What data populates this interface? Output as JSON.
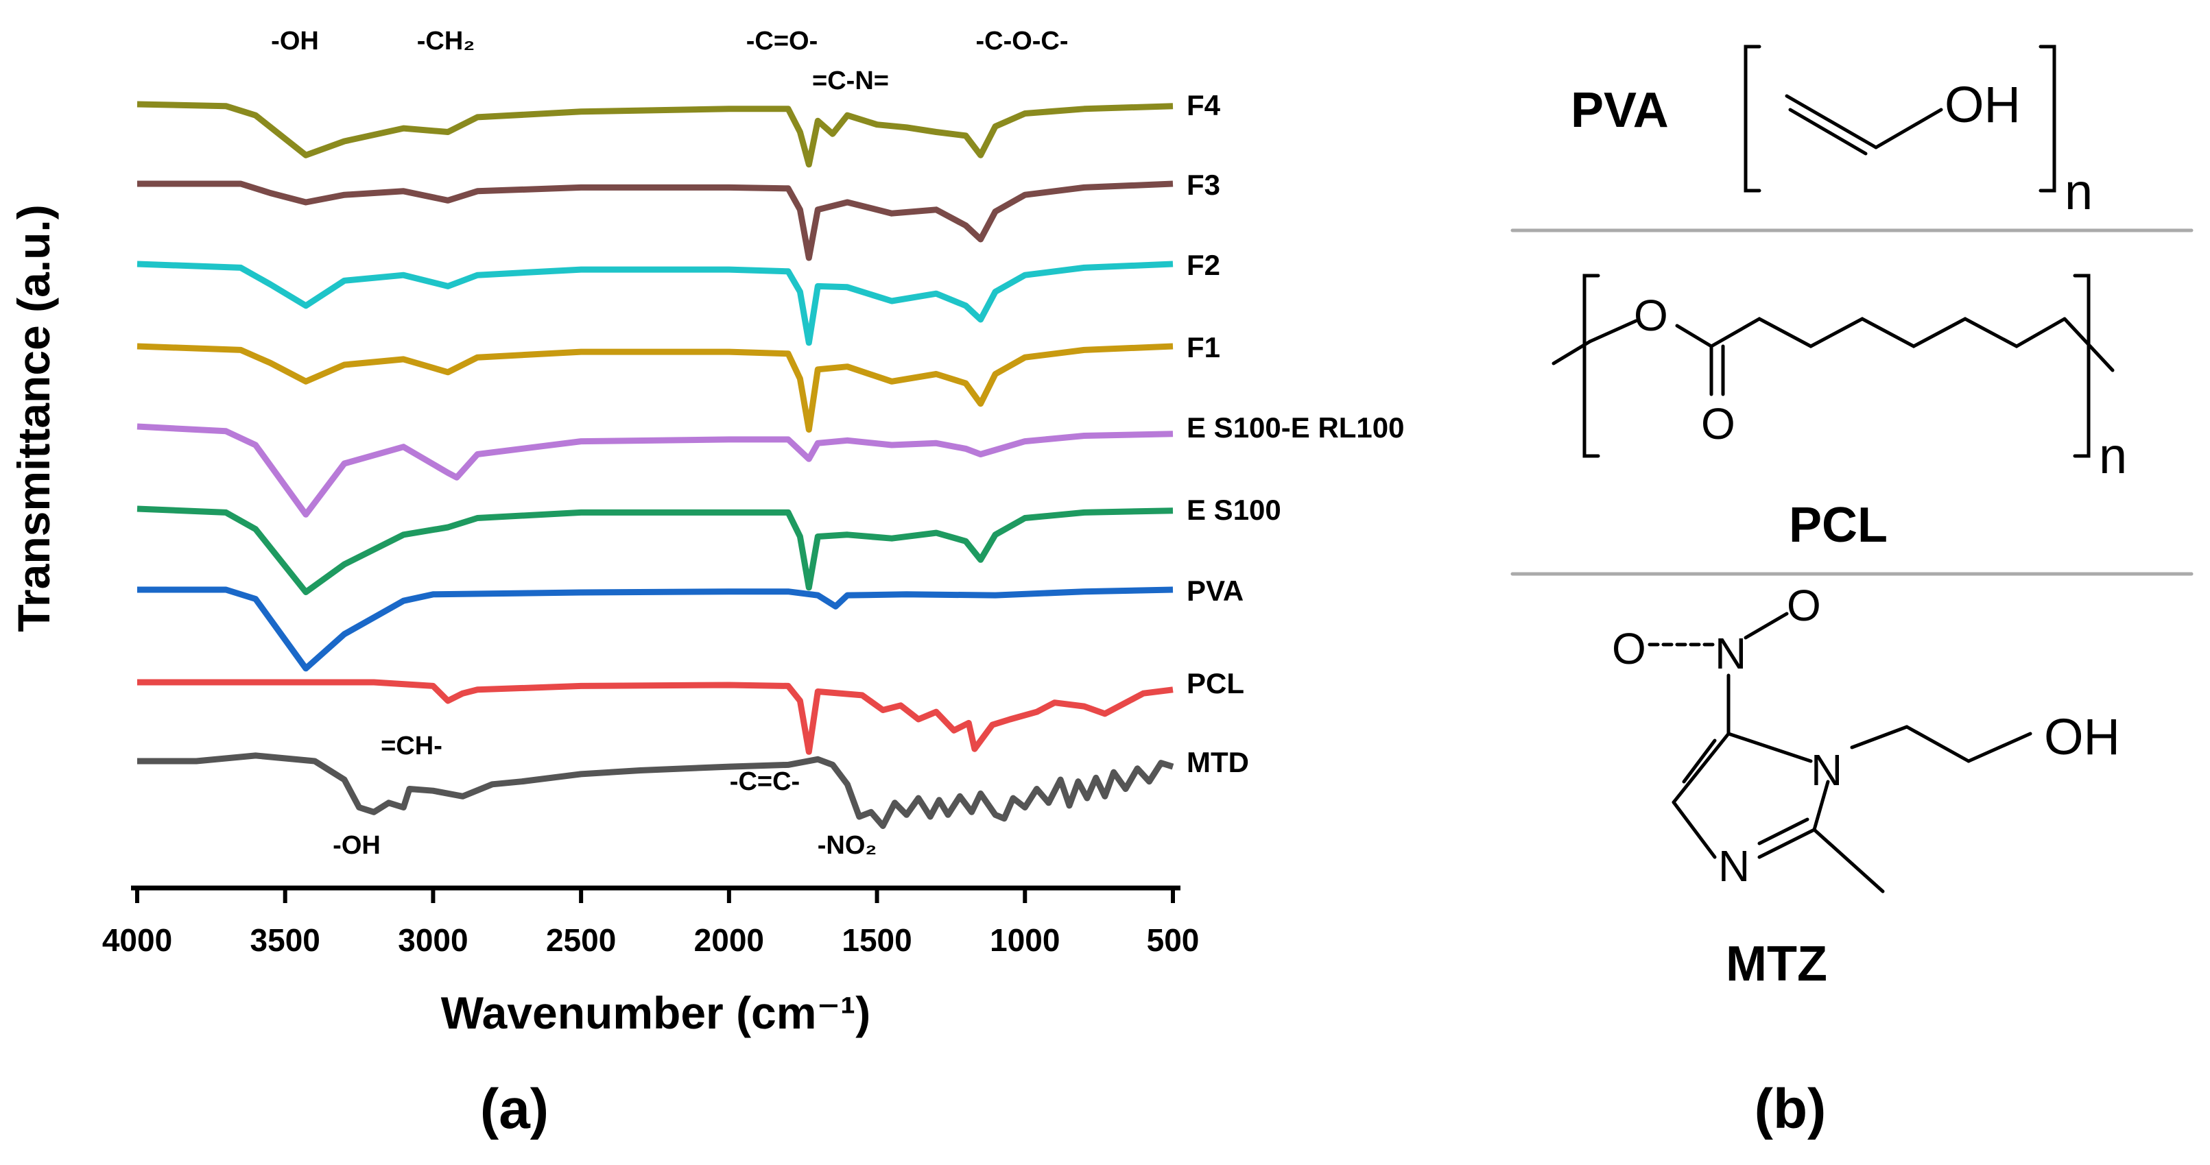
{
  "panel_a_caption": "(a)",
  "panel_b_caption": "(b)",
  "chart_data": {
    "type": "line",
    "title": "",
    "xlabel": "Wavenumber (cm⁻¹)",
    "ylabel": "Transmittance (a.u.)",
    "xlim": [
      4000,
      500
    ],
    "x_ticks": [
      4000,
      3500,
      3000,
      2500,
      2000,
      1500,
      1000,
      500
    ],
    "x_reversed": true,
    "grid": false,
    "legend": "labels at right end of each trace (stacked, offset)",
    "series": [
      {
        "name": "F4",
        "color": "#8a8a1e",
        "points": [
          [
            4000,
            0
          ],
          [
            3700,
            -2
          ],
          [
            3600,
            -12
          ],
          [
            3430,
            -55
          ],
          [
            3300,
            -40
          ],
          [
            3100,
            -26
          ],
          [
            2950,
            -30
          ],
          [
            2850,
            -14
          ],
          [
            2500,
            -8
          ],
          [
            2000,
            -5
          ],
          [
            1800,
            -5
          ],
          [
            1760,
            -30
          ],
          [
            1730,
            -65
          ],
          [
            1700,
            -18
          ],
          [
            1650,
            -32
          ],
          [
            1600,
            -12
          ],
          [
            1500,
            -22
          ],
          [
            1400,
            -25
          ],
          [
            1300,
            -30
          ],
          [
            1200,
            -34
          ],
          [
            1150,
            -55
          ],
          [
            1100,
            -24
          ],
          [
            1000,
            -10
          ],
          [
            800,
            -5
          ],
          [
            500,
            -2
          ]
        ]
      },
      {
        "name": "F3",
        "color": "#7a4a48",
        "points": [
          [
            4000,
            0
          ],
          [
            3650,
            0
          ],
          [
            3550,
            -10
          ],
          [
            3430,
            -20
          ],
          [
            3300,
            -12
          ],
          [
            3100,
            -8
          ],
          [
            2950,
            -18
          ],
          [
            2850,
            -8
          ],
          [
            2500,
            -4
          ],
          [
            2000,
            -4
          ],
          [
            1800,
            -5
          ],
          [
            1760,
            -28
          ],
          [
            1730,
            -80
          ],
          [
            1700,
            -28
          ],
          [
            1600,
            -20
          ],
          [
            1450,
            -32
          ],
          [
            1300,
            -28
          ],
          [
            1200,
            -45
          ],
          [
            1150,
            -60
          ],
          [
            1100,
            -30
          ],
          [
            1000,
            -12
          ],
          [
            800,
            -4
          ],
          [
            500,
            0
          ]
        ]
      },
      {
        "name": "F2",
        "color": "#1ec4c8",
        "points": [
          [
            4000,
            0
          ],
          [
            3650,
            -4
          ],
          [
            3550,
            -22
          ],
          [
            3430,
            -45
          ],
          [
            3300,
            -18
          ],
          [
            3100,
            -12
          ],
          [
            2950,
            -24
          ],
          [
            2850,
            -12
          ],
          [
            2500,
            -6
          ],
          [
            2000,
            -6
          ],
          [
            1800,
            -8
          ],
          [
            1760,
            -30
          ],
          [
            1730,
            -85
          ],
          [
            1700,
            -24
          ],
          [
            1600,
            -25
          ],
          [
            1450,
            -40
          ],
          [
            1300,
            -32
          ],
          [
            1200,
            -45
          ],
          [
            1150,
            -60
          ],
          [
            1100,
            -30
          ],
          [
            1000,
            -12
          ],
          [
            800,
            -4
          ],
          [
            500,
            0
          ]
        ]
      },
      {
        "name": "F1",
        "color": "#c89a10",
        "points": [
          [
            4000,
            0
          ],
          [
            3650,
            -4
          ],
          [
            3550,
            -18
          ],
          [
            3430,
            -38
          ],
          [
            3300,
            -20
          ],
          [
            3100,
            -14
          ],
          [
            2950,
            -28
          ],
          [
            2850,
            -12
          ],
          [
            2500,
            -6
          ],
          [
            2000,
            -6
          ],
          [
            1800,
            -8
          ],
          [
            1760,
            -35
          ],
          [
            1730,
            -90
          ],
          [
            1700,
            -25
          ],
          [
            1600,
            -22
          ],
          [
            1450,
            -38
          ],
          [
            1300,
            -30
          ],
          [
            1200,
            -40
          ],
          [
            1150,
            -62
          ],
          [
            1100,
            -30
          ],
          [
            1000,
            -12
          ],
          [
            800,
            -4
          ],
          [
            500,
            0
          ]
        ]
      },
      {
        "name": "E S100-E RL100",
        "color": "#b87ad8",
        "points": [
          [
            4000,
            0
          ],
          [
            3700,
            -5
          ],
          [
            3600,
            -20
          ],
          [
            3430,
            -95
          ],
          [
            3300,
            -40
          ],
          [
            3100,
            -22
          ],
          [
            2950,
            -50
          ],
          [
            2920,
            -55
          ],
          [
            2850,
            -30
          ],
          [
            2500,
            -16
          ],
          [
            2000,
            -14
          ],
          [
            1800,
            -14
          ],
          [
            1730,
            -35
          ],
          [
            1700,
            -18
          ],
          [
            1600,
            -15
          ],
          [
            1450,
            -20
          ],
          [
            1300,
            -18
          ],
          [
            1200,
            -24
          ],
          [
            1150,
            -30
          ],
          [
            1000,
            -16
          ],
          [
            800,
            -10
          ],
          [
            500,
            -8
          ]
        ]
      },
      {
        "name": "E S100",
        "color": "#1e9a60",
        "points": [
          [
            4000,
            0
          ],
          [
            3700,
            -4
          ],
          [
            3600,
            -22
          ],
          [
            3430,
            -90
          ],
          [
            3300,
            -60
          ],
          [
            3100,
            -28
          ],
          [
            2950,
            -20
          ],
          [
            2850,
            -10
          ],
          [
            2500,
            -4
          ],
          [
            2000,
            -4
          ],
          [
            1800,
            -4
          ],
          [
            1760,
            -30
          ],
          [
            1730,
            -85
          ],
          [
            1700,
            -30
          ],
          [
            1600,
            -28
          ],
          [
            1450,
            -32
          ],
          [
            1300,
            -26
          ],
          [
            1200,
            -35
          ],
          [
            1150,
            -55
          ],
          [
            1100,
            -28
          ],
          [
            1000,
            -10
          ],
          [
            800,
            -4
          ],
          [
            500,
            -2
          ]
        ]
      },
      {
        "name": "PVA",
        "color": "#1a68c8",
        "points": [
          [
            4000,
            0
          ],
          [
            3700,
            0
          ],
          [
            3600,
            -10
          ],
          [
            3430,
            -85
          ],
          [
            3300,
            -48
          ],
          [
            3100,
            -12
          ],
          [
            3000,
            -5
          ],
          [
            2500,
            -3
          ],
          [
            2000,
            -2
          ],
          [
            1800,
            -2
          ],
          [
            1700,
            -6
          ],
          [
            1640,
            -18
          ],
          [
            1600,
            -6
          ],
          [
            1400,
            -5
          ],
          [
            1100,
            -6
          ],
          [
            800,
            -2
          ],
          [
            500,
            0
          ]
        ]
      },
      {
        "name": "PCL",
        "color": "#e84848",
        "points": [
          [
            4000,
            0
          ],
          [
            3200,
            0
          ],
          [
            3000,
            -4
          ],
          [
            2950,
            -20
          ],
          [
            2900,
            -12
          ],
          [
            2850,
            -8
          ],
          [
            2500,
            -4
          ],
          [
            2000,
            -3
          ],
          [
            1800,
            -4
          ],
          [
            1760,
            -20
          ],
          [
            1730,
            -75
          ],
          [
            1700,
            -10
          ],
          [
            1550,
            -14
          ],
          [
            1480,
            -30
          ],
          [
            1420,
            -25
          ],
          [
            1360,
            -40
          ],
          [
            1300,
            -32
          ],
          [
            1240,
            -52
          ],
          [
            1190,
            -44
          ],
          [
            1170,
            -72
          ],
          [
            1110,
            -46
          ],
          [
            1050,
            -40
          ],
          [
            960,
            -32
          ],
          [
            900,
            -22
          ],
          [
            800,
            -26
          ],
          [
            730,
            -34
          ],
          [
            600,
            -12
          ],
          [
            500,
            -8
          ]
        ]
      },
      {
        "name": "MTD",
        "color": "#555555",
        "points": [
          [
            4000,
            0
          ],
          [
            3800,
            0
          ],
          [
            3600,
            6
          ],
          [
            3400,
            0
          ],
          [
            3300,
            -20
          ],
          [
            3250,
            -50
          ],
          [
            3200,
            -55
          ],
          [
            3150,
            -45
          ],
          [
            3100,
            -50
          ],
          [
            3080,
            -30
          ],
          [
            3000,
            -32
          ],
          [
            2900,
            -38
          ],
          [
            2800,
            -25
          ],
          [
            2700,
            -22
          ],
          [
            2500,
            -14
          ],
          [
            2300,
            -10
          ],
          [
            2000,
            -6
          ],
          [
            1800,
            -4
          ],
          [
            1700,
            2
          ],
          [
            1650,
            -4
          ],
          [
            1600,
            -25
          ],
          [
            1560,
            -60
          ],
          [
            1520,
            -55
          ],
          [
            1480,
            -70
          ],
          [
            1440,
            -45
          ],
          [
            1400,
            -58
          ],
          [
            1360,
            -40
          ],
          [
            1320,
            -60
          ],
          [
            1290,
            -42
          ],
          [
            1260,
            -58
          ],
          [
            1220,
            -38
          ],
          [
            1180,
            -55
          ],
          [
            1150,
            -35
          ],
          [
            1100,
            -58
          ],
          [
            1070,
            -62
          ],
          [
            1040,
            -40
          ],
          [
            1000,
            -50
          ],
          [
            960,
            -30
          ],
          [
            920,
            -45
          ],
          [
            880,
            -20
          ],
          [
            850,
            -48
          ],
          [
            820,
            -22
          ],
          [
            790,
            -40
          ],
          [
            760,
            -18
          ],
          [
            730,
            -38
          ],
          [
            700,
            -12
          ],
          [
            660,
            -30
          ],
          [
            620,
            -8
          ],
          [
            580,
            -22
          ],
          [
            540,
            -2
          ],
          [
            500,
            -6
          ]
        ]
      }
    ],
    "annotations": {
      "top": [
        "-OH",
        "-CH₂",
        "-C=O-",
        "=C-N=",
        "-C-O-C-"
      ],
      "bottom": [
        "=CH-",
        "-C=C-",
        "-OH",
        "-NO₂"
      ]
    }
  },
  "structures": {
    "pva": {
      "name": "PVA",
      "oh": "OH",
      "n": "n"
    },
    "pcl": {
      "name": "PCL",
      "o_ring": "O",
      "o_carbonyl": "O",
      "n": "n"
    },
    "mtz": {
      "name": "MTZ",
      "o_left": "O",
      "o_right": "O",
      "n_nitro": "N",
      "n_ring1": "N",
      "n_ring2": "N",
      "oh": "OH"
    }
  }
}
